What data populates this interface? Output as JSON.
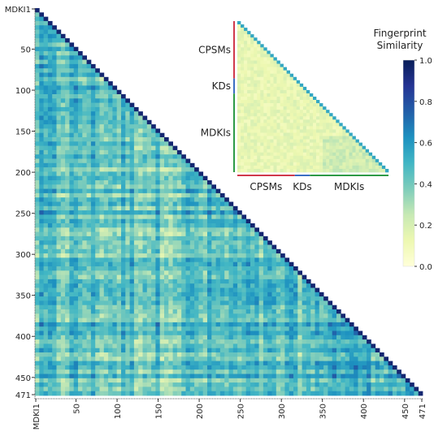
{
  "chart_data": [
    {
      "type": "heatmap",
      "shape": "lower-triangle",
      "n": 471,
      "y_tick_labels": [
        "MDKI1",
        "50",
        "100",
        "150",
        "200",
        "250",
        "300",
        "350",
        "400",
        "450",
        "471"
      ],
      "x_tick_labels": [
        "MDKI1",
        "50",
        "100",
        "150",
        "200",
        "250",
        "300",
        "350",
        "400",
        "450",
        "471"
      ],
      "tick_positions": [
        1,
        50,
        100,
        150,
        200,
        250,
        300,
        350,
        400,
        450,
        471
      ]
    },
    {
      "type": "heatmap",
      "shape": "lower-triangle",
      "groups": [
        {
          "name": "CPSMs",
          "color": "#d0394b"
        },
        {
          "name": "KDs",
          "color": "#3b6fc2"
        },
        {
          "name": "MDKIs",
          "color": "#2e9a46"
        }
      ],
      "group_fractions": [
        0.38,
        0.1,
        0.52
      ]
    }
  ],
  "colorbar": {
    "title_line1": "Fingerprint",
    "title_line2": "Similarity",
    "min": 0.0,
    "max": 1.0,
    "ticks": [
      "0.0",
      "0.2",
      "0.4",
      "0.6",
      "0.8",
      "1.0"
    ],
    "tick_values": [
      0.0,
      0.2,
      0.4,
      0.6,
      0.8,
      1.0
    ],
    "colormap": [
      "#ffffd9",
      "#edf8b1",
      "#c7e9b4",
      "#7fcdbb",
      "#41b6c4",
      "#1d91c0",
      "#225ea8",
      "#253494",
      "#081d58"
    ]
  }
}
